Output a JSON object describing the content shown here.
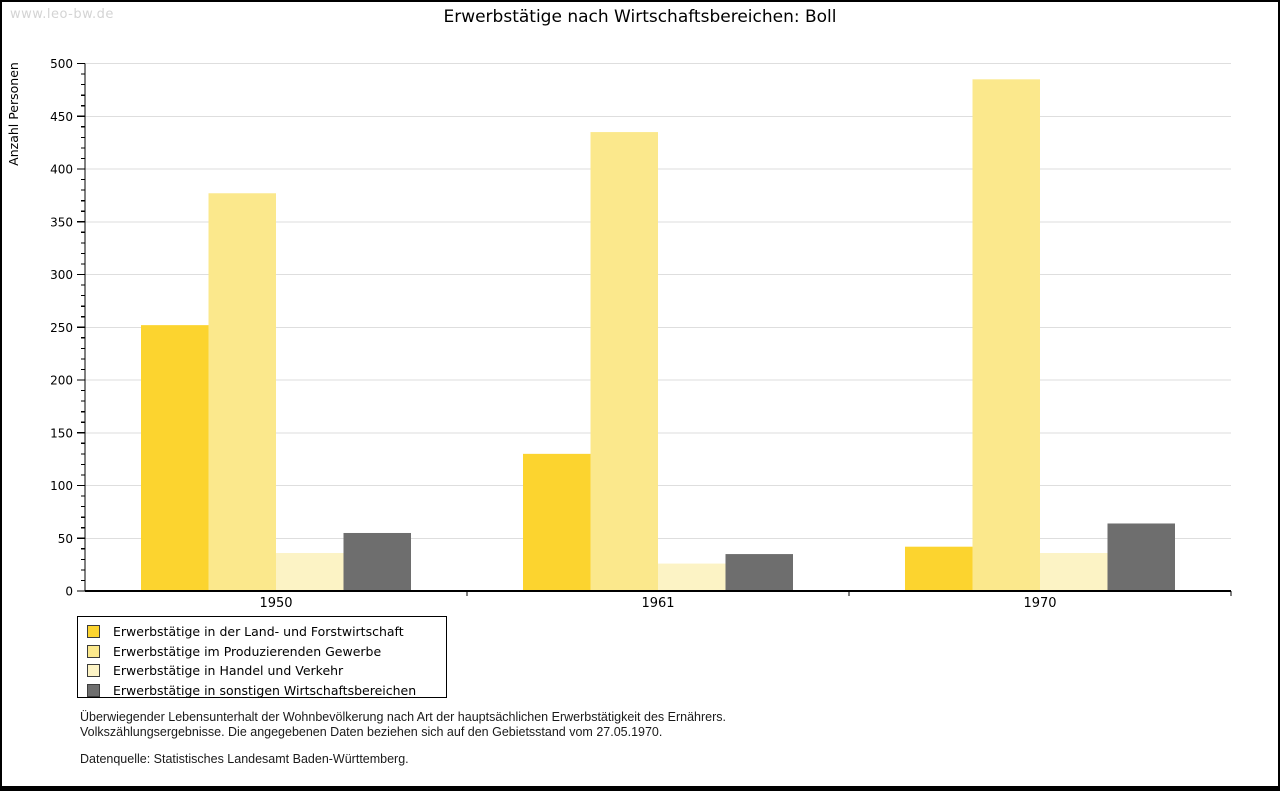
{
  "watermark": "www.leo-bw.de",
  "header": {
    "title": "Erwerbstätige nach Wirtschaftsbereichen: Boll"
  },
  "chart_data": {
    "type": "bar",
    "title": "Erwerbstätige nach Wirtschaftsbereichen: Boll",
    "xlabel": "",
    "ylabel": "Anzahl Personen",
    "ylim": [
      0,
      500
    ],
    "yticks": [
      0,
      50,
      100,
      150,
      200,
      250,
      300,
      350,
      400,
      450,
      500
    ],
    "yminor_step": 10,
    "grid": "horizontal-major",
    "legend_position": "bottom-left-boxed",
    "categories": [
      "1950",
      "1961",
      "1970"
    ],
    "series": [
      {
        "name": "Erwerbstätige in der Land- und Forstwirtschaft",
        "color": "#fcd42f",
        "values": [
          252,
          130,
          42
        ]
      },
      {
        "name": "Erwerbstätige im Produzierenden Gewerbe",
        "color": "#fbe88c",
        "values": [
          377,
          435,
          485
        ]
      },
      {
        "name": "Erwerbstätige in Handel und Verkehr",
        "color": "#fcf3c5",
        "values": [
          36,
          26,
          36
        ]
      },
      {
        "name": "Erwerbstätige in sonstigen Wirtschaftsbereichen",
        "color": "#6e6e6e",
        "values": [
          55,
          35,
          64
        ]
      }
    ]
  },
  "footnotes": {
    "line1": "Überwiegender Lebensunterhalt der Wohnbevölkerung nach Art der hauptsächlichen Erwerbstätigkeit des Ernährers.",
    "line2": "Volkszählungsergebnisse. Die angegebenen Daten beziehen sich auf den Gebietsstand vom 27.05.1970.",
    "source": "Datenquelle: Statistisches Landesamt Baden-Württemberg."
  },
  "colors": {
    "grid": "#dedede",
    "axis": "#000000",
    "tick_label": "#000000",
    "watermark": "#d4d4d4",
    "swatch_border": "#3c3c3c",
    "background": "#ffffff"
  }
}
